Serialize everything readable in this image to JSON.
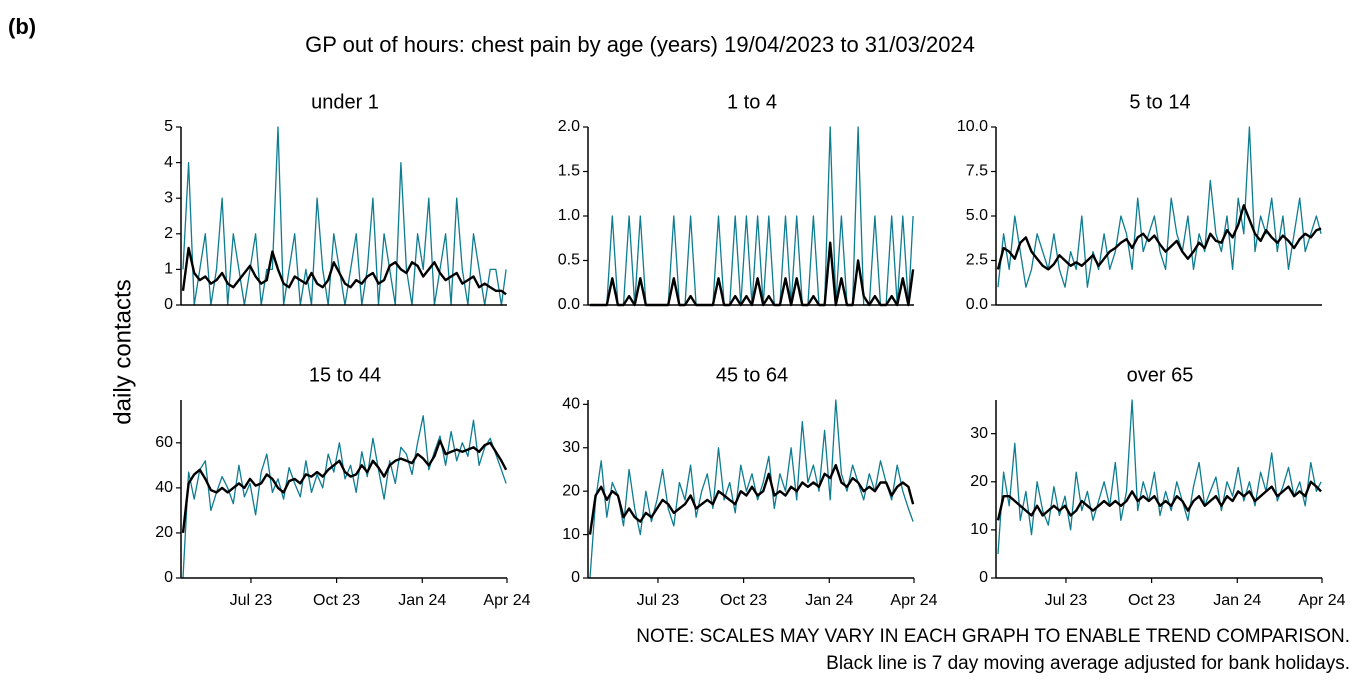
{
  "chart_data": {
    "type": "line",
    "label": "(b)",
    "title": "GP out of hours: chest pain by age (years) 19/04/2023 to 31/03/2024",
    "y_label": "daily contacts",
    "notes": [
      "NOTE: SCALES MAY VARY IN EACH GRAPH TO ENABLE TREND COMPARISON.",
      "Black line is 7 day moving average adjusted for bank holidays."
    ],
    "x": [
      0,
      6,
      12,
      18,
      24,
      30,
      36,
      42,
      48,
      54,
      60,
      66,
      72,
      78,
      84,
      90,
      96,
      102,
      108,
      114,
      120,
      126,
      132,
      138,
      144,
      150,
      156,
      162,
      168,
      174,
      180,
      186,
      192,
      198,
      204,
      210,
      216,
      222,
      228,
      234,
      240,
      246,
      252,
      258,
      264,
      270,
      276,
      282,
      288,
      294,
      300,
      306,
      312,
      318,
      324,
      330,
      336,
      342,
      347
    ],
    "xlim": [
      0,
      348
    ],
    "xticks": [
      {
        "value": 73,
        "label": "Jul 23"
      },
      {
        "value": 165,
        "label": "Oct 23"
      },
      {
        "value": 257,
        "label": "Jan 24"
      },
      {
        "value": 348,
        "label": "Apr 24"
      }
    ],
    "panels": [
      {
        "title": "under 1",
        "ylim": [
          0,
          5
        ],
        "yticks": [
          0,
          1,
          2,
          3,
          4,
          5
        ],
        "series": [
          {
            "color": "#0e7c91",
            "values": [
              1,
              4,
              0,
              1,
              2,
              0,
              1,
              3,
              0,
              2,
              1,
              0,
              1,
              2,
              0,
              1,
              1,
              5,
              0,
              1,
              2,
              0,
              1,
              0,
              3,
              1,
              0,
              2,
              1,
              0,
              1,
              2,
              0,
              1,
              3,
              0,
              2,
              1,
              0,
              4,
              1,
              0,
              2,
              1,
              3,
              0,
              1,
              2,
              0,
              3,
              1,
              0,
              2,
              1,
              0,
              1,
              1,
              0,
              1
            ]
          },
          {
            "color": "#000000",
            "values": [
              0.4,
              1.6,
              0.9,
              0.7,
              0.8,
              0.6,
              0.7,
              0.9,
              0.6,
              0.5,
              0.7,
              0.9,
              1.1,
              0.8,
              0.6,
              0.7,
              1.5,
              1.0,
              0.6,
              0.5,
              0.8,
              0.7,
              0.6,
              0.9,
              0.6,
              0.5,
              0.7,
              1.2,
              0.9,
              0.6,
              0.5,
              0.7,
              0.6,
              0.8,
              0.9,
              0.6,
              0.7,
              1.1,
              1.2,
              1.0,
              0.9,
              1.2,
              1.1,
              0.8,
              1.0,
              1.2,
              0.9,
              0.7,
              0.8,
              0.9,
              0.6,
              0.7,
              0.8,
              0.5,
              0.6,
              0.5,
              0.4,
              0.4,
              0.3
            ]
          }
        ]
      },
      {
        "title": "1 to 4",
        "ylim": [
          0,
          2
        ],
        "yticks": [
          {
            "value": 0,
            "label": "0.0"
          },
          0.5,
          {
            "value": 1,
            "label": "1.0"
          },
          1.5,
          {
            "value": 2,
            "label": "2.0"
          }
        ],
        "series": [
          {
            "color": "#0e7c91",
            "values": [
              0,
              0,
              0,
              0,
              1,
              0,
              0,
              1,
              0,
              1,
              0,
              0,
              0,
              0,
              0,
              1,
              0,
              0,
              1,
              0,
              0,
              0,
              0,
              1,
              0,
              0,
              1,
              0,
              1,
              0,
              1,
              0,
              1,
              0,
              0,
              1,
              0,
              1,
              0,
              0,
              1,
              0,
              0,
              2,
              0,
              1,
              0,
              0,
              2,
              0,
              0,
              1,
              0,
              0,
              1,
              0,
              1,
              0,
              1
            ]
          },
          {
            "color": "#000000",
            "values": [
              0,
              0,
              0,
              0,
              0.3,
              0,
              0,
              0.1,
              0,
              0.3,
              0,
              0,
              0,
              0,
              0,
              0.3,
              0,
              0,
              0.1,
              0,
              0,
              0,
              0,
              0.3,
              0,
              0,
              0.1,
              0,
              0.1,
              0,
              0.3,
              0,
              0.1,
              0,
              0,
              0.3,
              0,
              0.3,
              0,
              0,
              0.1,
              0,
              0,
              0.7,
              0,
              0.3,
              0,
              0,
              0.5,
              0.1,
              0,
              0.1,
              0,
              0,
              0.1,
              0,
              0.3,
              0,
              0.4
            ]
          }
        ]
      },
      {
        "title": "5 to 14",
        "ylim": [
          0,
          10
        ],
        "yticks": [
          {
            "value": 0,
            "label": "0.0"
          },
          2.5,
          {
            "value": 5,
            "label": "5.0"
          },
          7.5,
          {
            "value": 10,
            "label": "10.0"
          }
        ],
        "series": [
          {
            "color": "#0e7c91",
            "values": [
              1,
              4,
              2,
              5,
              3,
              1,
              2,
              4,
              3,
              2,
              4,
              2,
              1,
              3,
              2,
              5,
              1,
              3,
              2,
              4,
              2,
              3,
              5,
              4,
              2,
              6,
              3,
              4,
              5,
              3,
              2,
              6,
              4,
              3,
              5,
              2,
              4,
              3,
              7,
              4,
              3,
              5,
              2,
              6,
              4,
              10,
              3,
              5,
              4,
              6,
              3,
              5,
              2,
              4,
              6,
              3,
              4,
              5,
              4
            ]
          },
          {
            "color": "#000000",
            "values": [
              2.0,
              3.2,
              3.0,
              2.6,
              3.5,
              3.8,
              3.0,
              2.6,
              2.2,
              2.0,
              2.3,
              2.8,
              2.5,
              2.2,
              2.4,
              2.2,
              2.5,
              2.8,
              2.2,
              2.6,
              3.0,
              3.2,
              3.5,
              3.7,
              3.2,
              3.8,
              4.0,
              3.6,
              3.9,
              3.4,
              3.0,
              3.3,
              3.6,
              3.0,
              2.6,
              3.0,
              3.5,
              3.2,
              4.0,
              3.6,
              3.5,
              4.2,
              3.8,
              4.5,
              5.6,
              4.8,
              4.0,
              3.6,
              4.2,
              3.8,
              3.5,
              3.9,
              3.6,
              3.2,
              3.7,
              4.0,
              3.8,
              4.2,
              4.3
            ]
          }
        ]
      },
      {
        "title": "15 to 44",
        "ylim": [
          0,
          79
        ],
        "yticks": [
          0,
          20,
          40,
          60
        ],
        "series": [
          {
            "color": "#0e7c91",
            "values": [
              0,
              47,
              35,
              48,
              52,
              30,
              38,
              45,
              40,
              33,
              50,
              36,
              42,
              28,
              47,
              55,
              38,
              44,
              35,
              49,
              42,
              36,
              52,
              38,
              46,
              40,
              55,
              47,
              60,
              44,
              50,
              38,
              56,
              45,
              62,
              48,
              35,
              52,
              42,
              58,
              55,
              46,
              60,
              72,
              48,
              56,
              63,
              50,
              65,
              52,
              60,
              54,
              70,
              50,
              58,
              62,
              55,
              48,
              42
            ]
          },
          {
            "color": "#000000",
            "values": [
              20,
              42,
              46,
              48,
              44,
              39,
              38,
              40,
              38,
              40,
              42,
              40,
              44,
              41,
              42,
              46,
              44,
              40,
              38,
              43,
              44,
              42,
              46,
              45,
              47,
              45,
              48,
              50,
              52,
              47,
              45,
              46,
              50,
              47,
              52,
              49,
              45,
              50,
              52,
              53,
              52,
              51,
              55,
              53,
              50,
              54,
              61,
              55,
              56,
              57,
              56,
              57,
              58,
              56,
              59,
              60,
              56,
              52,
              48
            ]
          }
        ]
      },
      {
        "title": "45 to 64",
        "ylim": [
          0,
          41
        ],
        "yticks": [
          0,
          10,
          20,
          30,
          40
        ],
        "series": [
          {
            "color": "#0e7c91",
            "values": [
              0,
              18,
              27,
              14,
              22,
              19,
              12,
              25,
              16,
              10,
              20,
              13,
              18,
              25,
              16,
              12,
              22,
              18,
              26,
              14,
              20,
              24,
              16,
              30,
              18,
              22,
              15,
              26,
              20,
              24,
              18,
              22,
              28,
              16,
              24,
              20,
              30,
              18,
              36,
              22,
              26,
              20,
              34,
              18,
              41,
              24,
              20,
              26,
              22,
              18,
              24,
              20,
              27,
              22,
              18,
              26,
              20,
              16,
              13
            ]
          },
          {
            "color": "#000000",
            "values": [
              10,
              19,
              21,
              18,
              20,
              19,
              14,
              16,
              14,
              13,
              15,
              14,
              16,
              18,
              17,
              15,
              16,
              17,
              19,
              16,
              17,
              18,
              17,
              20,
              19,
              18,
              17,
              20,
              19,
              21,
              19,
              20,
              24,
              19,
              20,
              19,
              21,
              20,
              22,
              21,
              22,
              21,
              24,
              23,
              26,
              22,
              21,
              23,
              22,
              20,
              21,
              20,
              22,
              22,
              19,
              21,
              22,
              21,
              17
            ]
          }
        ]
      },
      {
        "title": "over 65",
        "ylim": [
          0,
          37
        ],
        "yticks": [
          0,
          10,
          20,
          30
        ],
        "series": [
          {
            "color": "#0e7c91",
            "values": [
              5,
              22,
              15,
              28,
              12,
              18,
              9,
              20,
              14,
              11,
              19,
              13,
              17,
              10,
              22,
              14,
              18,
              12,
              16,
              20,
              15,
              24,
              12,
              18,
              37,
              14,
              20,
              16,
              22,
              13,
              18,
              14,
              20,
              16,
              12,
              19,
              24,
              15,
              18,
              21,
              14,
              20,
              17,
              23,
              16,
              20,
              15,
              22,
              18,
              26,
              16,
              19,
              23,
              17,
              20,
              15,
              24,
              18,
              20
            ]
          },
          {
            "color": "#000000",
            "values": [
              12,
              17,
              17,
              16,
              15,
              14,
              13,
              15,
              13,
              14,
              15,
              14,
              15,
              13,
              14,
              16,
              15,
              14,
              15,
              16,
              15,
              16,
              15,
              16,
              18,
              16,
              17,
              16,
              17,
              15,
              16,
              15,
              17,
              16,
              14,
              16,
              17,
              15,
              16,
              17,
              15,
              17,
              16,
              18,
              17,
              18,
              16,
              17,
              18,
              19,
              17,
              18,
              19,
              17,
              18,
              17,
              20,
              19,
              18
            ]
          }
        ]
      }
    ]
  }
}
